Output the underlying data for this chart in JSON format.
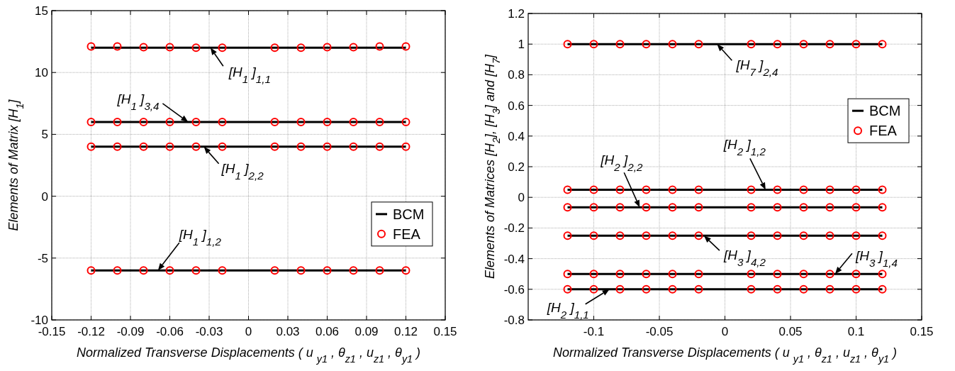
{
  "chart_data": [
    {
      "type": "line",
      "xlabel": "Normalized Transverse Displacements ( u $_{y1}$ , θ$_{z1}$ , u$_{z1}$ , θ$_{y1}$ )",
      "ylabel": "Elements of Matrix [H$_{1}$]",
      "xlim": [
        -0.15,
        0.15
      ],
      "xticks": [
        -0.15,
        -0.12,
        -0.09,
        -0.06,
        -0.03,
        0,
        0.03,
        0.06,
        0.09,
        0.12,
        0.15
      ],
      "ylim": [
        -10,
        15
      ],
      "yticks": [
        -10,
        -5,
        0,
        5,
        10,
        15
      ],
      "grid": true,
      "legend": "bottom right",
      "series": [
        {
          "name": "BCM",
          "color": "#000000",
          "x": [
            -0.12,
            0.12
          ],
          "values": [
            12,
            12
          ]
        },
        {
          "color": "#000000",
          "x": [
            -0.12,
            0.12
          ],
          "values": [
            6,
            6
          ]
        },
        {
          "color": "#000000",
          "x": [
            -0.12,
            0.12
          ],
          "values": [
            4,
            4
          ]
        },
        {
          "color": "#000000",
          "x": [
            -0.12,
            0.12
          ],
          "values": [
            -6,
            -6
          ]
        },
        {
          "name": "FEA",
          "type": "scatter",
          "marker": "circle",
          "color": "#ff0000",
          "x": [
            -0.12,
            -0.1,
            -0.08,
            -0.06,
            -0.04,
            -0.02,
            0.02,
            0.04,
            0.06,
            0.08,
            0.1,
            0.12
          ],
          "values": [
            12.1,
            12.1,
            12.05,
            12.05,
            12,
            12,
            12,
            12,
            12.05,
            12.05,
            12.1,
            12.1
          ]
        },
        {
          "type": "scatter",
          "marker": "circle",
          "color": "#ff0000",
          "x": [
            -0.12,
            -0.1,
            -0.08,
            -0.06,
            -0.04,
            -0.02,
            0.02,
            0.04,
            0.06,
            0.08,
            0.1,
            0.12
          ],
          "values": [
            6,
            6,
            6,
            6,
            6,
            6,
            6,
            6,
            6,
            6,
            6,
            6
          ]
        },
        {
          "type": "scatter",
          "marker": "circle",
          "color": "#ff0000",
          "x": [
            -0.12,
            -0.1,
            -0.08,
            -0.06,
            -0.04,
            -0.02,
            0.02,
            0.04,
            0.06,
            0.08,
            0.1,
            0.12
          ],
          "values": [
            4,
            4,
            4,
            4,
            4,
            4,
            4,
            4,
            4,
            4,
            4,
            4
          ]
        },
        {
          "type": "scatter",
          "marker": "circle",
          "color": "#ff0000",
          "x": [
            -0.12,
            -0.1,
            -0.08,
            -0.06,
            -0.04,
            -0.02,
            0.02,
            0.04,
            0.06,
            0.08,
            0.1,
            0.12
          ],
          "values": [
            -6,
            -6,
            -6,
            -6,
            -6,
            -6,
            -6,
            -6,
            -6,
            -6,
            -6,
            -6
          ]
        }
      ],
      "annotations": [
        {
          "text": "[H$_{1}$ ]$_{1,1}$",
          "x": -0.029,
          "y": 12
        },
        {
          "text": "[H$_{1}$ ]$_{3,4}$",
          "x": -0.046,
          "y": 6
        },
        {
          "text": "[H$_{1}$ ]$_{2,2}$",
          "x": -0.034,
          "y": 4
        },
        {
          "text": "[H$_{1}$ ]$_{1,2}$",
          "x": -0.069,
          "y": -6
        }
      ]
    },
    {
      "type": "line",
      "xlabel": "Normalized Transverse Displacements ( u $_{y1}$ , θ$_{z1}$ , u$_{z1}$ , θ$_{y1}$ )",
      "ylabel": "Elements of Matrices [H$_{2}$], [H$_{3}$] and [H$_{7}$]",
      "xlim": [
        -0.15,
        0.15
      ],
      "xticks": [
        -0.1,
        -0.05,
        0,
        0.05,
        0.1,
        0.15
      ],
      "ylim": [
        -0.8,
        1.2
      ],
      "yticks": [
        -0.8,
        -0.6,
        -0.4,
        -0.2,
        0,
        0.2,
        0.4,
        0.6,
        0.8,
        1,
        1.2
      ],
      "grid": true,
      "legend": "top right",
      "series": [
        {
          "name": "BCM",
          "color": "#000000",
          "x": [
            -0.12,
            0.12
          ],
          "values": [
            1,
            1
          ]
        },
        {
          "color": "#000000",
          "x": [
            -0.12,
            0.12
          ],
          "values": [
            0.05,
            0.05
          ]
        },
        {
          "color": "#000000",
          "x": [
            -0.12,
            0.12
          ],
          "values": [
            -0.065,
            -0.065
          ]
        },
        {
          "color": "#000000",
          "x": [
            -0.12,
            0.12
          ],
          "values": [
            -0.25,
            -0.25
          ]
        },
        {
          "color": "#000000",
          "x": [
            -0.12,
            0.12
          ],
          "values": [
            -0.5,
            -0.5
          ]
        },
        {
          "color": "#000000",
          "x": [
            -0.12,
            0.12
          ],
          "values": [
            -0.6,
            -0.6
          ]
        },
        {
          "name": "FEA",
          "type": "scatter",
          "marker": "circle",
          "color": "#ff0000",
          "x": [
            -0.12,
            -0.1,
            -0.08,
            -0.06,
            -0.04,
            -0.02,
            0.02,
            0.04,
            0.06,
            0.08,
            0.1,
            0.12
          ],
          "values": [
            1,
            1,
            1,
            1,
            1,
            1,
            1,
            1,
            1,
            1,
            1,
            1
          ]
        },
        {
          "type": "scatter",
          "marker": "circle",
          "color": "#ff0000",
          "x": [
            -0.12,
            -0.1,
            -0.08,
            -0.06,
            -0.04,
            -0.02,
            0.02,
            0.04,
            0.06,
            0.08,
            0.1,
            0.12
          ],
          "values": [
            0.05,
            0.05,
            0.05,
            0.05,
            0.05,
            0.05,
            0.05,
            0.05,
            0.05,
            0.05,
            0.05,
            0.05
          ]
        },
        {
          "type": "scatter",
          "marker": "circle",
          "color": "#ff0000",
          "x": [
            -0.12,
            -0.1,
            -0.08,
            -0.06,
            -0.04,
            -0.02,
            0.02,
            0.04,
            0.06,
            0.08,
            0.1,
            0.12
          ],
          "values": [
            -0.065,
            -0.065,
            -0.065,
            -0.065,
            -0.065,
            -0.065,
            -0.065,
            -0.065,
            -0.065,
            -0.065,
            -0.065,
            -0.065
          ]
        },
        {
          "type": "scatter",
          "marker": "circle",
          "color": "#ff0000",
          "x": [
            -0.12,
            -0.1,
            -0.08,
            -0.06,
            -0.04,
            -0.02,
            0.02,
            0.04,
            0.06,
            0.08,
            0.1,
            0.12
          ],
          "values": [
            -0.25,
            -0.25,
            -0.25,
            -0.25,
            -0.25,
            -0.25,
            -0.25,
            -0.25,
            -0.25,
            -0.25,
            -0.25,
            -0.25
          ]
        },
        {
          "type": "scatter",
          "marker": "circle",
          "color": "#ff0000",
          "x": [
            -0.12,
            -0.1,
            -0.08,
            -0.06,
            -0.04,
            -0.02,
            0.02,
            0.04,
            0.06,
            0.08,
            0.1,
            0.12
          ],
          "values": [
            -0.5,
            -0.5,
            -0.5,
            -0.5,
            -0.5,
            -0.5,
            -0.5,
            -0.5,
            -0.5,
            -0.5,
            -0.5,
            -0.5
          ]
        },
        {
          "type": "scatter",
          "marker": "circle",
          "color": "#ff0000",
          "x": [
            -0.12,
            -0.1,
            -0.08,
            -0.06,
            -0.04,
            -0.02,
            0.02,
            0.04,
            0.06,
            0.08,
            0.1,
            0.12
          ],
          "values": [
            -0.6,
            -0.6,
            -0.6,
            -0.6,
            -0.6,
            -0.6,
            -0.6,
            -0.6,
            -0.6,
            -0.6,
            -0.6,
            -0.6
          ]
        }
      ],
      "annotations": [
        {
          "text": "[H$_{7}$ ]$_{2,4}$",
          "x": -0.006,
          "y": 1
        },
        {
          "text": "[H$_{2}$ ]$_{2,2}$",
          "x": -0.065,
          "y": -0.065
        },
        {
          "text": "[H$_{2}$ ]$_{1,2}$",
          "x": 0.031,
          "y": 0.05
        },
        {
          "text": "[H$_{3}$ ]$_{4,2}$",
          "x": -0.016,
          "y": -0.25
        },
        {
          "text": "[H$_{3}$ ]$_{1,4}$",
          "x": 0.084,
          "y": -0.5
        },
        {
          "text": "[H$_{2}$ ]$_{1,1}$",
          "x": -0.088,
          "y": -0.6
        }
      ]
    }
  ]
}
